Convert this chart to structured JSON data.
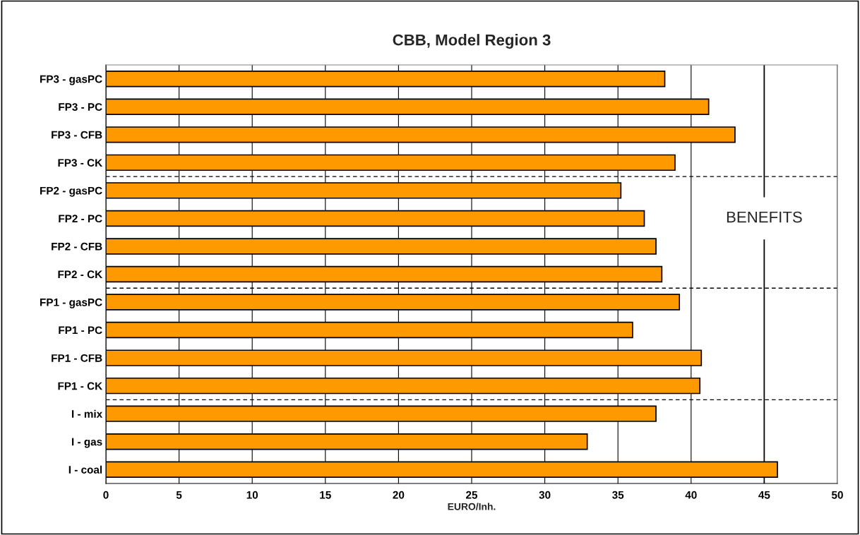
{
  "chart_data": {
    "type": "bar",
    "orientation": "horizontal",
    "title": "CBB, Model Region 3",
    "xlabel": "EURO/Inh.",
    "categories": [
      "FP3 - gasPC",
      "FP3 - PC",
      "FP3 - CFB",
      "FP3 - CK",
      "FP2 - gasPC",
      "FP2 - PC",
      "FP2 - CFB",
      "FP2 - CK",
      "FP1 - gasPC",
      "FP1 - PC",
      "FP1 - CFB",
      "FP1 - CK",
      "I - mix",
      "I - gas",
      "I - coal"
    ],
    "values": [
      38.2,
      41.2,
      43.0,
      38.9,
      35.2,
      36.8,
      37.6,
      38.0,
      39.2,
      36.0,
      40.7,
      40.6,
      37.6,
      32.9,
      45.9
    ],
    "color": "#ff9900",
    "xlim": [
      0,
      50
    ],
    "xticks": [
      0,
      5,
      10,
      15,
      20,
      25,
      30,
      35,
      40,
      45,
      50
    ],
    "grid": "x",
    "ref_lines": [
      {
        "axis": "x",
        "value": 45,
        "label": "BENEFITS",
        "color": "#000000",
        "line_style": "solid"
      }
    ]
  }
}
